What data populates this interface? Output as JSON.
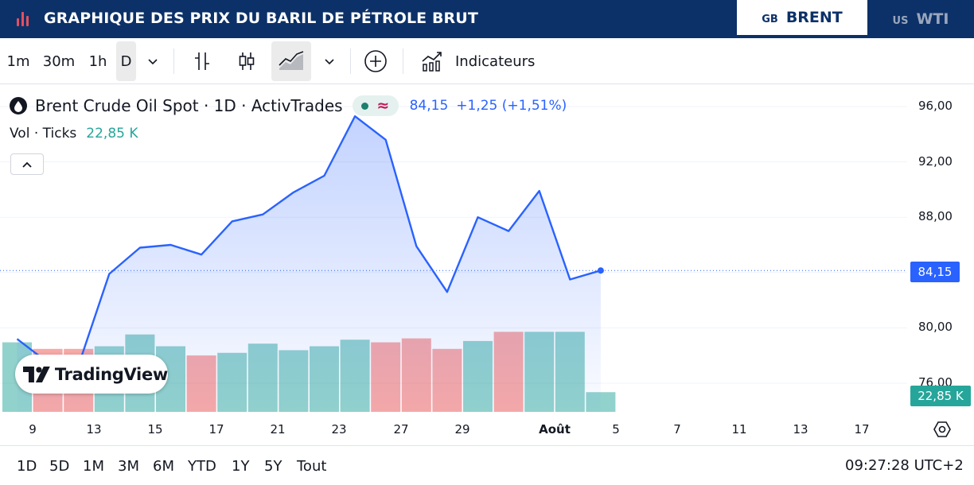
{
  "banner": {
    "title": "GRAPHIQUE DES PRIX DU BARIL DE PÉTROLE BRUT",
    "tabs": [
      {
        "code": "GB",
        "label": "BRENT",
        "active": true
      },
      {
        "code": "US",
        "label": "WTI",
        "active": false
      }
    ]
  },
  "toolbar": {
    "intervals": [
      "1m",
      "30m",
      "1h",
      "D"
    ],
    "active_interval": "D",
    "indicators_label": "Indicateurs"
  },
  "legend": {
    "symbol": "Brent Crude Oil Spot · 1D · ActivTrades",
    "price": "84,15",
    "change": "+1,25 (+1,51%)",
    "volume_label": "Vol · Ticks",
    "volume_value": "22,85 K"
  },
  "axis": {
    "price_badge": "84,15",
    "volume_badge": "22,85 K"
  },
  "chart_data": {
    "type": "area",
    "line_color": "#2962ff",
    "volume_up_color": "#26a69a",
    "volume_down_color": "#ef5350",
    "ylim": [
      75,
      98
    ],
    "yticks": [
      "96,00",
      "92,00",
      "88,00",
      "84,00",
      "80,00",
      "76,00"
    ],
    "ytick_values": [
      96,
      92,
      88,
      84,
      80,
      76
    ],
    "xticks": [
      "9",
      "13",
      "15",
      "17",
      "21",
      "23",
      "27",
      "29",
      "Août",
      "5",
      "7",
      "11",
      "13",
      "17"
    ],
    "series": [
      {
        "values": [
          79.2,
          77.5,
          77.3,
          83.9,
          85.8,
          86.0,
          85.3,
          87.7,
          88.2,
          89.8,
          91.0,
          95.3,
          93.6,
          85.9,
          82.6,
          88.0,
          87.0,
          89.9,
          83.5,
          84.15
        ]
      }
    ],
    "volume": {
      "values": [
        5.3,
        4.8,
        4.8,
        5.0,
        5.9,
        5.0,
        4.3,
        4.5,
        5.2,
        4.7,
        5.0,
        5.5,
        5.3,
        5.6,
        4.8,
        5.4,
        6.1,
        6.1,
        6.1,
        1.5
      ],
      "direction": [
        "up",
        "down",
        "down",
        "up",
        "up",
        "up",
        "down",
        "up",
        "up",
        "up",
        "up",
        "up",
        "down",
        "down",
        "down",
        "up",
        "down",
        "up",
        "up",
        "up"
      ]
    }
  },
  "range": {
    "buttons": [
      "1D",
      "5D",
      "1M",
      "3M",
      "6M",
      "YTD",
      "1Y",
      "5Y",
      "Tout"
    ],
    "clock": "09:27:28 UTC+2"
  }
}
